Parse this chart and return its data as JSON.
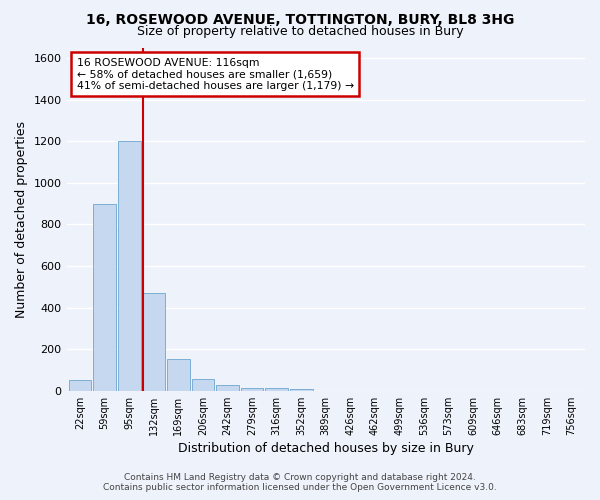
{
  "title_line1": "16, ROSEWOOD AVENUE, TOTTINGTON, BURY, BL8 3HG",
  "title_line2": "Size of property relative to detached houses in Bury",
  "xlabel": "Distribution of detached houses by size in Bury",
  "ylabel": "Number of detached properties",
  "bar_labels": [
    "22sqm",
    "59sqm",
    "95sqm",
    "132sqm",
    "169sqm",
    "206sqm",
    "242sqm",
    "279sqm",
    "316sqm",
    "352sqm",
    "389sqm",
    "426sqm",
    "462sqm",
    "499sqm",
    "536sqm",
    "573sqm",
    "609sqm",
    "646sqm",
    "683sqm",
    "719sqm",
    "756sqm"
  ],
  "bar_values": [
    50,
    900,
    1200,
    470,
    155,
    55,
    30,
    15,
    12,
    10,
    0,
    0,
    0,
    0,
    0,
    0,
    0,
    0,
    0,
    0,
    0
  ],
  "bar_color": "#c5d8f0",
  "bar_edge_color": "#7bafd4",
  "background_color": "#eef2fa",
  "grid_color": "#ffffff",
  "redline_x": 2.58,
  "annotation_text": "16 ROSEWOOD AVENUE: 116sqm\n← 58% of detached houses are smaller (1,659)\n41% of semi-detached houses are larger (1,179) →",
  "annotation_box_color": "#ffffff",
  "annotation_box_edge": "#cc0000",
  "ylim": [
    0,
    1650
  ],
  "yticks": [
    0,
    200,
    400,
    600,
    800,
    1000,
    1200,
    1400,
    1600
  ],
  "footer_line1": "Contains HM Land Registry data © Crown copyright and database right 2024.",
  "footer_line2": "Contains public sector information licensed under the Open Government Licence v3.0."
}
